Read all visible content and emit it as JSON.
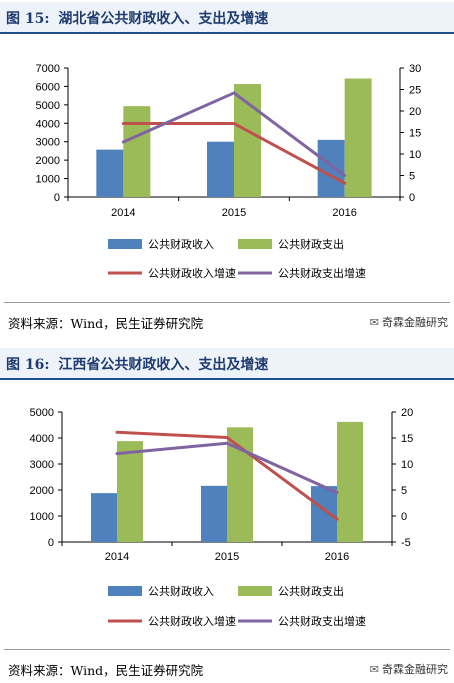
{
  "figures": [
    {
      "number_label": "图 15:",
      "title": "湖北省公共财政收入、支出及增速",
      "source": "资料来源：Wind，民生证券研究院",
      "watermark": "奇霖金融研究"
    },
    {
      "number_label": "图 16:",
      "title": "江西省公共财政收入、支出及增速",
      "source": "资料来源：Wind，民生证券研究院",
      "watermark": "奇霖金融研究"
    }
  ],
  "colors": {
    "revenue": "#4f81bd",
    "expenditure": "#9bbb59",
    "revenue_growth": "#c0504d",
    "expenditure_growth": "#8064a2",
    "header_text": "#1f3c70"
  },
  "chart_data": [
    {
      "type": "bar",
      "categories": [
        "2014",
        "2015",
        "2016"
      ],
      "series": [
        {
          "name": "公共财政收入",
          "type": "bar",
          "axis": "left",
          "values": [
            2570,
            3000,
            3100
          ]
        },
        {
          "name": "公共财政支出",
          "type": "bar",
          "axis": "left",
          "values": [
            4930,
            6130,
            6430
          ]
        },
        {
          "name": "公共财政收入增速",
          "type": "line",
          "axis": "right",
          "values": [
            17.1,
            17.1,
            3.2
          ]
        },
        {
          "name": "公共财政支出增速",
          "type": "line",
          "axis": "right",
          "values": [
            12.8,
            24.2,
            5.0
          ]
        }
      ],
      "ylim": [
        0,
        7000
      ],
      "yticks": [
        0,
        1000,
        2000,
        3000,
        4000,
        5000,
        6000,
        7000
      ],
      "y2lim": [
        0,
        30
      ],
      "y2ticks": [
        0,
        5,
        10,
        15,
        20,
        25,
        30
      ],
      "grid": false,
      "legend_position": "bottom"
    },
    {
      "type": "bar",
      "categories": [
        "2014",
        "2015",
        "2016"
      ],
      "series": [
        {
          "name": "公共财政收入",
          "type": "bar",
          "axis": "left",
          "values": [
            1880,
            2160,
            2150
          ]
        },
        {
          "name": "公共财政支出",
          "type": "bar",
          "axis": "left",
          "values": [
            3880,
            4410,
            4620
          ]
        },
        {
          "name": "公共财政收入增速",
          "type": "line",
          "axis": "right",
          "values": [
            16.1,
            15.1,
            -0.6
          ]
        },
        {
          "name": "公共财政支出增速",
          "type": "line",
          "axis": "right",
          "values": [
            12.0,
            14.0,
            4.5
          ]
        }
      ],
      "ylim": [
        0,
        5000
      ],
      "yticks": [
        0,
        1000,
        2000,
        3000,
        4000,
        5000
      ],
      "y2lim": [
        -5,
        20
      ],
      "y2ticks": [
        -5,
        0,
        5,
        10,
        15,
        20
      ],
      "grid": false,
      "legend_position": "bottom"
    }
  ]
}
